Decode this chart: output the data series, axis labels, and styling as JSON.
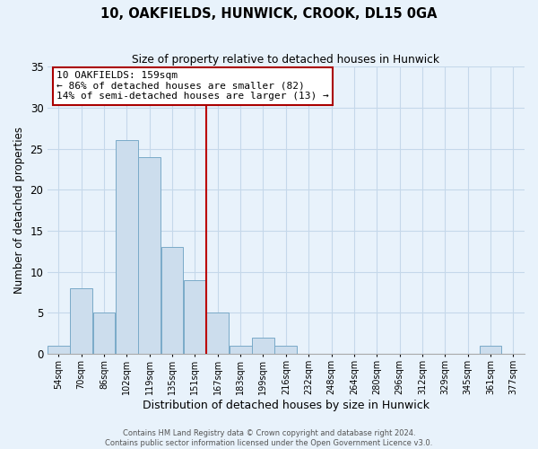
{
  "title": "10, OAKFIELDS, HUNWICK, CROOK, DL15 0GA",
  "subtitle": "Size of property relative to detached houses in Hunwick",
  "xlabel": "Distribution of detached houses by size in Hunwick",
  "ylabel": "Number of detached properties",
  "bin_labels": [
    "54sqm",
    "70sqm",
    "86sqm",
    "102sqm",
    "119sqm",
    "135sqm",
    "151sqm",
    "167sqm",
    "183sqm",
    "199sqm",
    "216sqm",
    "232sqm",
    "248sqm",
    "264sqm",
    "280sqm",
    "296sqm",
    "312sqm",
    "329sqm",
    "345sqm",
    "361sqm",
    "377sqm"
  ],
  "bar_values": [
    1,
    8,
    5,
    26,
    24,
    13,
    9,
    5,
    1,
    2,
    1,
    0,
    0,
    0,
    0,
    0,
    0,
    0,
    0,
    1,
    0
  ],
  "bar_color": "#ccdded",
  "bar_edge_color": "#7aaac8",
  "grid_color": "#c5d8ea",
  "background_color": "#e8f2fb",
  "vline_x": 6.5,
  "annotation_text": "10 OAKFIELDS: 159sqm\n← 86% of detached houses are smaller (82)\n14% of semi-detached houses are larger (13) →",
  "annotation_box_facecolor": "#ffffff",
  "annotation_box_edgecolor": "#aa0000",
  "ylim": [
    0,
    35
  ],
  "yticks": [
    0,
    5,
    10,
    15,
    20,
    25,
    30,
    35
  ],
  "footer_line1": "Contains HM Land Registry data © Crown copyright and database right 2024.",
  "footer_line2": "Contains public sector information licensed under the Open Government Licence v3.0."
}
